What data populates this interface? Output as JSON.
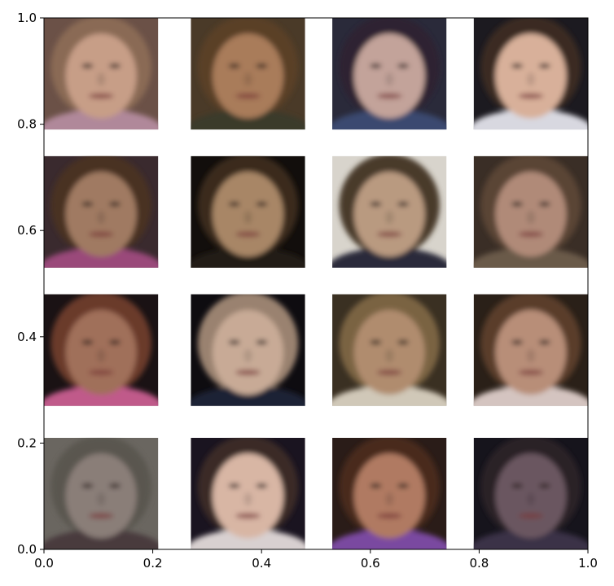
{
  "chart_data": {
    "type": "image-grid",
    "xlim": [
      0.0,
      1.0
    ],
    "ylim": [
      0.0,
      1.0
    ],
    "xticks": [
      "0.0",
      "0.2",
      "0.4",
      "0.6",
      "0.8",
      "1.0"
    ],
    "yticks": [
      "0.0",
      "0.2",
      "0.4",
      "0.6",
      "0.8",
      "1.0"
    ],
    "grid": false,
    "rows": 4,
    "cols": 4,
    "tiles": [
      {
        "row": 0,
        "col": 0,
        "x0": 0.0,
        "x1": 0.21,
        "y0": 0.79,
        "y1": 1.0,
        "bg": "#6b5147",
        "skin": "#c79e87",
        "hair": "#8a6a55",
        "cloth": "#b0889a"
      },
      {
        "row": 0,
        "col": 1,
        "x0": 0.27,
        "x1": 0.48,
        "y0": 0.79,
        "y1": 1.0,
        "bg": "#4a3a28",
        "skin": "#a97b5a",
        "hair": "#5a3f26",
        "cloth": "#3a3a2a"
      },
      {
        "row": 0,
        "col": 2,
        "x0": 0.53,
        "x1": 0.74,
        "y0": 0.79,
        "y1": 1.0,
        "bg": "#2a2a3a",
        "skin": "#c3a39a",
        "hair": "#2d2430",
        "cloth": "#3a4a70"
      },
      {
        "row": 0,
        "col": 3,
        "x0": 0.79,
        "x1": 1.0,
        "y0": 0.79,
        "y1": 1.0,
        "bg": "#1c1a20",
        "skin": "#d8b09a",
        "hair": "#3a2a22",
        "cloth": "#d8d8e0"
      },
      {
        "row": 1,
        "col": 0,
        "x0": 0.0,
        "x1": 0.21,
        "y0": 0.53,
        "y1": 0.74,
        "bg": "#3a2a2e",
        "skin": "#a07a62",
        "hair": "#4a3224",
        "cloth": "#9a4a7a"
      },
      {
        "row": 1,
        "col": 1,
        "x0": 0.27,
        "x1": 0.48,
        "y0": 0.53,
        "y1": 0.74,
        "bg": "#120e0c",
        "skin": "#a88666",
        "hair": "#3a2a1c",
        "cloth": "#201a16"
      },
      {
        "row": 1,
        "col": 2,
        "x0": 0.53,
        "x1": 0.74,
        "y0": 0.53,
        "y1": 0.74,
        "bg": "#d8d4cc",
        "skin": "#b99a80",
        "hair": "#4a3a2c",
        "cloth": "#2a2a3a"
      },
      {
        "row": 1,
        "col": 3,
        "x0": 0.79,
        "x1": 1.0,
        "y0": 0.53,
        "y1": 0.74,
        "bg": "#3a2e26",
        "skin": "#b08a78",
        "hair": "#5a4434",
        "cloth": "#6a5a4a"
      },
      {
        "row": 2,
        "col": 0,
        "x0": 0.0,
        "x1": 0.21,
        "y0": 0.27,
        "y1": 0.48,
        "bg": "#1a1214",
        "skin": "#a0705a",
        "hair": "#6a3a2a",
        "cloth": "#c05a8a"
      },
      {
        "row": 2,
        "col": 1,
        "x0": 0.27,
        "x1": 0.48,
        "y0": 0.27,
        "y1": 0.48,
        "bg": "#0e0c10",
        "skin": "#c8aa96",
        "hair": "#9a8270",
        "cloth": "#1e2436"
      },
      {
        "row": 2,
        "col": 2,
        "x0": 0.53,
        "x1": 0.74,
        "y0": 0.27,
        "y1": 0.48,
        "bg": "#3a3022",
        "skin": "#b08c6e",
        "hair": "#7a6442",
        "cloth": "#d0c8b8"
      },
      {
        "row": 2,
        "col": 3,
        "x0": 0.79,
        "x1": 1.0,
        "y0": 0.27,
        "y1": 0.48,
        "bg": "#2a2018",
        "skin": "#b88e78",
        "hair": "#5a3e2a",
        "cloth": "#d4c4c0"
      },
      {
        "row": 3,
        "col": 0,
        "x0": 0.0,
        "x1": 0.21,
        "y0": 0.0,
        "y1": 0.21,
        "bg": "#6a6660",
        "skin": "#8a7e78",
        "hair": "#5a5650",
        "cloth": "#4a3a3e"
      },
      {
        "row": 3,
        "col": 1,
        "x0": 0.27,
        "x1": 0.48,
        "y0": 0.0,
        "y1": 0.21,
        "bg": "#1a1420",
        "skin": "#d8b6a4",
        "hair": "#3a2a26",
        "cloth": "#d8d0d0"
      },
      {
        "row": 3,
        "col": 2,
        "x0": 0.53,
        "x1": 0.74,
        "y0": 0.0,
        "y1": 0.21,
        "bg": "#2a1c18",
        "skin": "#b07a62",
        "hair": "#4a2a1e",
        "cloth": "#7a4aa0"
      },
      {
        "row": 3,
        "col": 3,
        "x0": 0.79,
        "x1": 1.0,
        "y0": 0.0,
        "y1": 0.21,
        "bg": "#16141c",
        "skin": "#6a5660",
        "hair": "#2a2228",
        "cloth": "#3a3046"
      }
    ]
  }
}
